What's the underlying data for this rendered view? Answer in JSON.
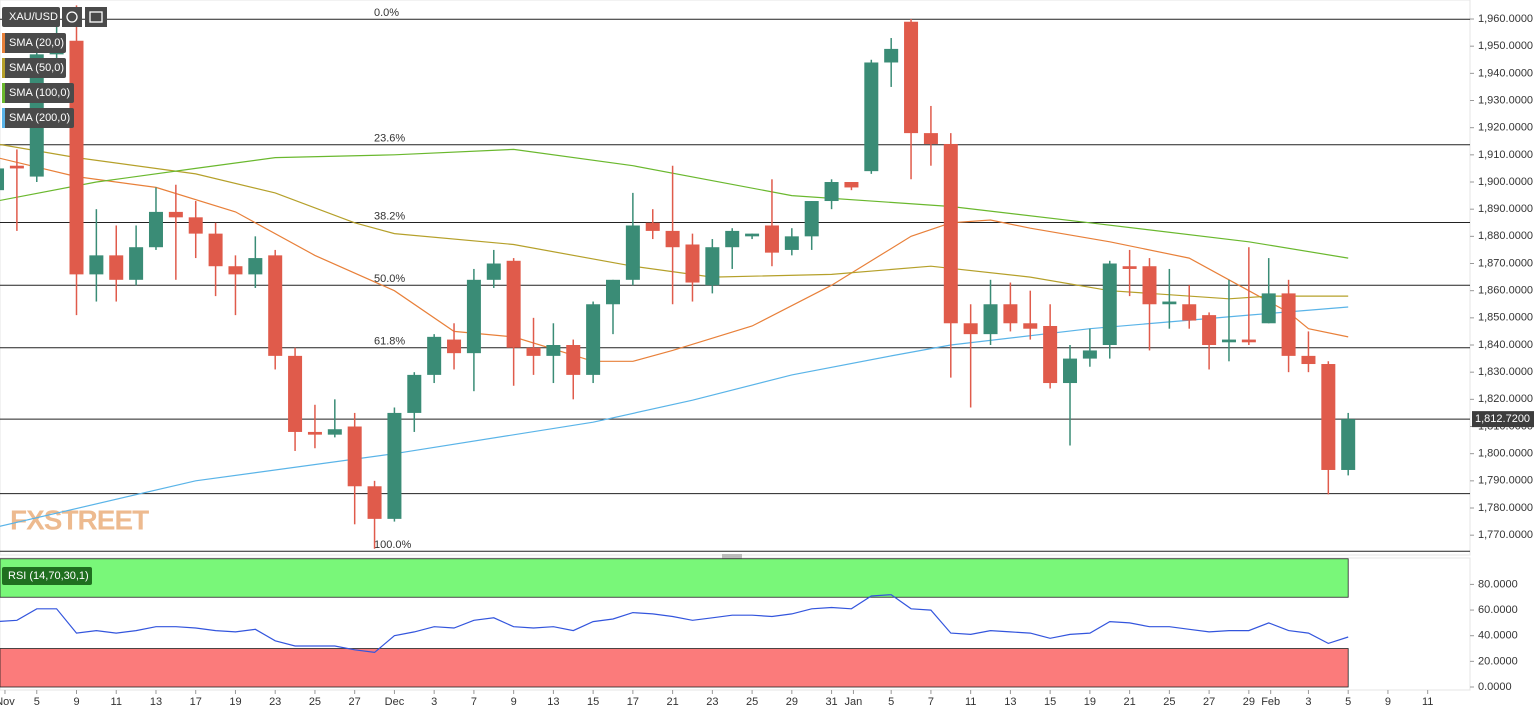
{
  "chart_data": [
    {
      "type": "candlestick",
      "symbol": "XAU/USD",
      "watermark": "FXSTREET",
      "x": [
        0,
        1,
        2,
        3,
        4,
        5,
        6,
        7,
        8,
        9,
        10,
        11,
        12,
        13,
        14,
        15,
        16,
        17,
        18,
        19,
        20,
        21,
        22,
        23,
        24,
        25,
        26,
        27,
        28,
        29,
        30,
        31,
        32,
        33,
        34,
        35,
        36,
        37,
        38,
        39,
        40,
        41,
        42,
        43,
        44,
        45,
        46,
        47,
        48,
        49,
        50,
        51,
        52,
        53,
        54,
        55,
        56,
        57,
        58,
        59,
        60,
        61,
        62,
        63,
        64,
        65,
        66,
        67,
        68
      ],
      "open": [
        1897,
        1906,
        1902,
        1947,
        1952,
        1866,
        1873,
        1864,
        1876,
        1889,
        1887,
        1881,
        1869,
        1866,
        1873,
        1836,
        1808,
        1807,
        1810,
        1788,
        1776,
        1815,
        1829,
        1842,
        1837,
        1864,
        1871,
        1839,
        1836,
        1840,
        1829,
        1855,
        1864,
        1885,
        1882,
        1877,
        1862,
        1876,
        1880,
        1884,
        1875,
        1880,
        1893,
        1900,
        1904,
        1944,
        1959,
        1918,
        1914,
        1848,
        1844,
        1855,
        1848,
        1847,
        1826,
        1835,
        1840,
        1869,
        1869,
        1855,
        1855,
        1851,
        1841,
        1842,
        1848,
        1859,
        1836,
        1833,
        1794
      ],
      "high": [
        1905,
        1912,
        1950,
        1963,
        1965,
        1890,
        1884,
        1884,
        1898,
        1899,
        1893,
        1885,
        1873,
        1880,
        1875,
        1839,
        1818,
        1820,
        1815,
        1790,
        1817,
        1830,
        1844,
        1848,
        1868,
        1875,
        1872,
        1850,
        1848,
        1842,
        1856,
        1864,
        1896,
        1890,
        1906,
        1881,
        1879,
        1883,
        1881,
        1901,
        1883,
        1893,
        1901,
        1900,
        1945,
        1953,
        1960,
        1928,
        1918,
        1855,
        1864,
        1863,
        1860,
        1855,
        1840,
        1846,
        1871,
        1875,
        1872,
        1868,
        1862,
        1852,
        1864,
        1876,
        1872,
        1864,
        1845,
        1834,
        1815
      ],
      "low": [
        1893,
        1882,
        1900,
        1940,
        1851,
        1856,
        1856,
        1862,
        1875,
        1864,
        1872,
        1858,
        1851,
        1861,
        1831,
        1801,
        1802,
        1806,
        1774,
        1765,
        1775,
        1808,
        1826,
        1831,
        1823,
        1861,
        1825,
        1829,
        1826,
        1820,
        1826,
        1844,
        1862,
        1879,
        1855,
        1856,
        1859,
        1868,
        1879,
        1869,
        1873,
        1875,
        1890,
        1897,
        1903,
        1935,
        1901,
        1906,
        1828,
        1817,
        1840,
        1845,
        1842,
        1824,
        1803,
        1832,
        1835,
        1858,
        1838,
        1846,
        1846,
        1831,
        1834,
        1840,
        1848,
        1830,
        1830,
        1785,
        1792
      ],
      "close": [
        1905,
        1905,
        1947,
        1952,
        1866,
        1873,
        1864,
        1876,
        1889,
        1887,
        1881,
        1869,
        1866,
        1872,
        1836,
        1808,
        1807,
        1809,
        1788,
        1776,
        1815,
        1829,
        1843,
        1837,
        1864,
        1870,
        1839,
        1836,
        1840,
        1829,
        1855,
        1864,
        1884,
        1882,
        1876,
        1863,
        1876,
        1882,
        1881,
        1874,
        1880,
        1893,
        1900,
        1898,
        1944,
        1949,
        1918,
        1914,
        1848,
        1844,
        1855,
        1848,
        1846,
        1826,
        1835,
        1838,
        1870,
        1868,
        1855,
        1856,
        1849,
        1840,
        1842,
        1841,
        1859,
        1836,
        1833,
        1794,
        1812.72
      ],
      "up_color": "#3a8c76",
      "down_color": "#e05b4b",
      "series": [
        {
          "name": "SMA (20,0)",
          "color": "#e8803a",
          "x": [
            0,
            4,
            8,
            12,
            16,
            20,
            23,
            26,
            30,
            32,
            34,
            38,
            42,
            46,
            48,
            50,
            52,
            56,
            60,
            63,
            65,
            66,
            68
          ],
          "values": [
            1909,
            1902,
            1898,
            1889,
            1873,
            1860,
            1845,
            1843,
            1834,
            1834,
            1838,
            1847,
            1862,
            1880,
            1885,
            1886,
            1883,
            1878,
            1872,
            1860,
            1852,
            1846,
            1843
          ]
        },
        {
          "name": "SMA (50,0)",
          "color": "#b5a02a",
          "x": [
            0,
            4,
            10,
            14,
            18,
            20,
            26,
            32,
            36,
            42,
            47,
            52,
            56,
            62,
            64,
            68
          ],
          "values": [
            1914,
            1909,
            1903,
            1896,
            1885,
            1881,
            1877,
            1869,
            1865,
            1866,
            1869,
            1865,
            1860,
            1857,
            1858,
            1858
          ]
        },
        {
          "name": "SMA (100,0)",
          "color": "#6ab82e",
          "x": [
            0,
            5,
            10,
            14,
            20,
            26,
            32,
            40,
            48,
            55,
            63,
            68
          ],
          "values": [
            1893,
            1900,
            1905,
            1909,
            1910,
            1912,
            1906,
            1895,
            1891,
            1885,
            1878,
            1872
          ]
        },
        {
          "name": "SMA (200,0)",
          "color": "#5ab4e8",
          "x": [
            0,
            10,
            20,
            30,
            35,
            40,
            45,
            48,
            55,
            63,
            68
          ],
          "values": [
            1773,
            1790,
            1800,
            1811.6,
            1819.7,
            1829,
            1836,
            1840,
            1846,
            1851,
            1854
          ]
        }
      ],
      "fib_levels": [
        {
          "value": 1959.9,
          "label": "0.0%"
        },
        {
          "value": 1913.7,
          "label": "23.6%"
        },
        {
          "value": 1885.1,
          "label": "38.2%"
        },
        {
          "value": 1862,
          "label": "50.0%"
        },
        {
          "value": 1839,
          "label": "61.8%"
        },
        {
          "value": 1764.1,
          "label": "100.0%"
        }
      ],
      "h_lines": [
        1785.3
      ],
      "last_price": {
        "value": 1812.72,
        "label": "1,812.7200"
      },
      "xlim": [
        0.15,
        74.13
      ],
      "ylim": [
        1762.7,
        1967
      ],
      "yticks": [
        {
          "value": 1960,
          "label": "1,960.0000"
        },
        {
          "value": 1950,
          "label": "1,950.0000"
        },
        {
          "value": 1940,
          "label": "1,940.0000"
        },
        {
          "value": 1930,
          "label": "1,930.0000"
        },
        {
          "value": 1920,
          "label": "1,920.0000"
        },
        {
          "value": 1910,
          "label": "1,910.0000"
        },
        {
          "value": 1900,
          "label": "1,900.0000"
        },
        {
          "value": 1890,
          "label": "1,890.0000"
        },
        {
          "value": 1880,
          "label": "1,880.0000"
        },
        {
          "value": 1870,
          "label": "1,870.0000"
        },
        {
          "value": 1860,
          "label": "1,860.0000"
        },
        {
          "value": 1850,
          "label": "1,850.0000"
        },
        {
          "value": 1840,
          "label": "1,840.0000"
        },
        {
          "value": 1830,
          "label": "1,830.0000"
        },
        {
          "value": 1820,
          "label": "1,820.0000"
        },
        {
          "value": 1810,
          "label": "1,810.0000"
        },
        {
          "value": 1800,
          "label": "1,800.0000"
        },
        {
          "value": 1790,
          "label": "1,790.0000"
        },
        {
          "value": 1780,
          "label": "1,780.0000"
        },
        {
          "value": 1770,
          "label": "1,770.0000"
        }
      ]
    },
    {
      "type": "line",
      "title": "RSI (14,70,30,1)",
      "color": "#3355dd",
      "x": [
        0,
        1,
        2,
        3,
        4,
        5,
        6,
        7,
        8,
        9,
        10,
        11,
        12,
        13,
        14,
        15,
        16,
        17,
        18,
        19,
        20,
        21,
        22,
        23,
        24,
        25,
        26,
        27,
        28,
        29,
        30,
        31,
        32,
        33,
        34,
        35,
        36,
        37,
        38,
        39,
        40,
        41,
        42,
        43,
        44,
        45,
        46,
        47,
        48,
        49,
        50,
        51,
        52,
        53,
        54,
        55,
        56,
        57,
        58,
        59,
        60,
        61,
        62,
        63,
        64,
        65,
        66,
        67,
        68
      ],
      "values": [
        51,
        52,
        61,
        61,
        42,
        44,
        42,
        44,
        47,
        47,
        46,
        44,
        43,
        45,
        36,
        32,
        32,
        32,
        29,
        27,
        40,
        43,
        47,
        46,
        52,
        54,
        47,
        46,
        47,
        44,
        51,
        53,
        58,
        57,
        55,
        52,
        54,
        56,
        56,
        55,
        57,
        61,
        62,
        61,
        71,
        72,
        61,
        60,
        42,
        41,
        44,
        43,
        42,
        38,
        41,
        42,
        51,
        50,
        47,
        47,
        45,
        43,
        44,
        44,
        50,
        44,
        42,
        34,
        39
      ],
      "zones": [
        {
          "range": [
            70,
            100
          ],
          "color": "#79f779"
        },
        {
          "range": [
            0,
            30
          ],
          "color": "#fb7b7b"
        }
      ],
      "xlim": [
        0.15,
        74.13
      ],
      "ylim": [
        0,
        100.6
      ],
      "yticks": [
        {
          "value": 80,
          "label": "80.0000"
        },
        {
          "value": 60,
          "label": "60.0000"
        },
        {
          "value": 40,
          "label": "40.0000"
        },
        {
          "value": 20,
          "label": "20.0000"
        },
        {
          "value": 0,
          "label": "0.0000"
        }
      ],
      "xticks": [
        {
          "value": 0.4,
          "label": "Nov"
        },
        {
          "value": 2,
          "label": "5"
        },
        {
          "value": 4,
          "label": "9"
        },
        {
          "value": 6,
          "label": "11"
        },
        {
          "value": 8,
          "label": "13"
        },
        {
          "value": 10,
          "label": "17"
        },
        {
          "value": 12,
          "label": "19"
        },
        {
          "value": 14,
          "label": "23"
        },
        {
          "value": 16,
          "label": "25"
        },
        {
          "value": 18,
          "label": "27"
        },
        {
          "value": 20,
          "label": "Dec"
        },
        {
          "value": 22,
          "label": "3"
        },
        {
          "value": 24,
          "label": "7"
        },
        {
          "value": 26,
          "label": "9"
        },
        {
          "value": 28,
          "label": "13"
        },
        {
          "value": 30,
          "label": "15"
        },
        {
          "value": 32,
          "label": "17"
        },
        {
          "value": 34,
          "label": "21"
        },
        {
          "value": 36,
          "label": "23"
        },
        {
          "value": 38,
          "label": "25"
        },
        {
          "value": 40,
          "label": "29"
        },
        {
          "value": 42,
          "label": "31"
        },
        {
          "value": 43.1,
          "label": "Jan"
        },
        {
          "value": 45,
          "label": "5"
        },
        {
          "value": 47,
          "label": "7"
        },
        {
          "value": 49,
          "label": "11"
        },
        {
          "value": 51,
          "label": "13"
        },
        {
          "value": 53,
          "label": "15"
        },
        {
          "value": 55,
          "label": "19"
        },
        {
          "value": 57,
          "label": "21"
        },
        {
          "value": 59,
          "label": "25"
        },
        {
          "value": 61,
          "label": "27"
        },
        {
          "value": 63,
          "label": "29"
        },
        {
          "value": 64.1,
          "label": "Feb"
        },
        {
          "value": 66,
          "label": "3"
        },
        {
          "value": 68,
          "label": "5"
        },
        {
          "value": 70,
          "label": "9"
        },
        {
          "value": 72,
          "label": "11"
        }
      ]
    }
  ]
}
